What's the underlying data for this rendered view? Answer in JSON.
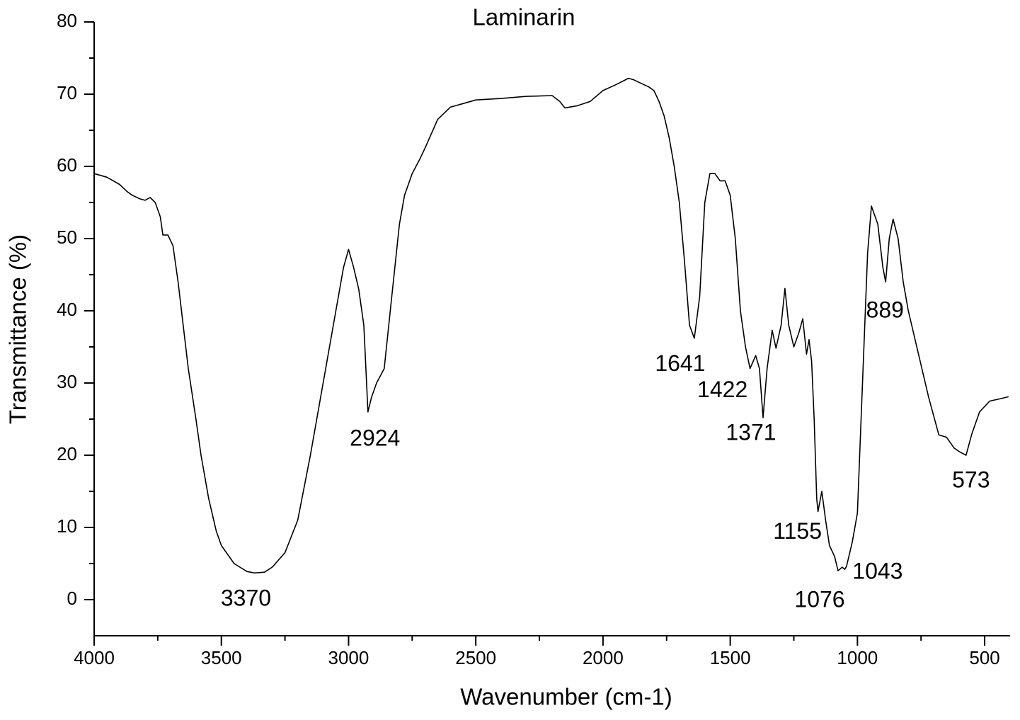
{
  "chart_data": {
    "type": "line",
    "title": "Laminarin",
    "x_label": "Wavenumber (cm-1)",
    "y_label": "Transmittance (%)",
    "xlim": [
      4000,
      400
    ],
    "ylim": [
      -5,
      80
    ],
    "xticks": [
      4000,
      3500,
      3000,
      2500,
      2000,
      1500,
      1000,
      500
    ],
    "xminorticks": [
      3750,
      3250,
      2750,
      2250,
      1750,
      1250,
      750
    ],
    "yticks": [
      0,
      10,
      20,
      30,
      40,
      50,
      60,
      70,
      80
    ],
    "yminorticks": [
      5,
      15,
      25,
      35,
      45,
      55,
      65,
      75
    ],
    "color": "#000000",
    "x": [
      4000,
      3950,
      3900,
      3870,
      3850,
      3820,
      3800,
      3780,
      3760,
      3740,
      3730,
      3710,
      3690,
      3670,
      3650,
      3630,
      3600,
      3580,
      3550,
      3520,
      3500,
      3450,
      3400,
      3370,
      3330,
      3300,
      3250,
      3200,
      3150,
      3100,
      3050,
      3020,
      3000,
      2980,
      2960,
      2940,
      2924,
      2910,
      2890,
      2860,
      2830,
      2800,
      2780,
      2750,
      2720,
      2700,
      2650,
      2600,
      2550,
      2500,
      2400,
      2300,
      2200,
      2170,
      2150,
      2100,
      2050,
      2000,
      1950,
      1900,
      1880,
      1850,
      1820,
      1800,
      1780,
      1760,
      1740,
      1720,
      1700,
      1680,
      1660,
      1641,
      1620,
      1600,
      1580,
      1560,
      1540,
      1520,
      1500,
      1480,
      1460,
      1440,
      1422,
      1400,
      1385,
      1371,
      1355,
      1335,
      1320,
      1300,
      1285,
      1270,
      1250,
      1230,
      1215,
      1200,
      1190,
      1180,
      1170,
      1160,
      1155,
      1140,
      1125,
      1110,
      1090,
      1076,
      1060,
      1050,
      1043,
      1020,
      1000,
      980,
      960,
      945,
      920,
      900,
      889,
      875,
      860,
      840,
      820,
      800,
      760,
      720,
      680,
      650,
      620,
      600,
      573,
      550,
      520,
      480,
      440,
      406
    ],
    "values": [
      59,
      58.5,
      57.5,
      56.5,
      56,
      55.5,
      55.3,
      55.7,
      55,
      53,
      50.5,
      50.5,
      49,
      44,
      38,
      32,
      25,
      20,
      14,
      9.5,
      7.5,
      5,
      3.9,
      3.7,
      3.8,
      4.5,
      6.5,
      11,
      20,
      30,
      40,
      46,
      48.5,
      46,
      43,
      38,
      26,
      28,
      30,
      32,
      42,
      52,
      56,
      59,
      61,
      62.5,
      66.5,
      68.2,
      68.7,
      69.2,
      69.4,
      69.7,
      69.8,
      69,
      68.1,
      68.4,
      69,
      70.5,
      71.3,
      72.2,
      72,
      71.5,
      71,
      70.5,
      69,
      67,
      64,
      60,
      55,
      47,
      38,
      36.2,
      42,
      55,
      59,
      59,
      58,
      58,
      56,
      50,
      40,
      35,
      32,
      33.8,
      32,
      25.2,
      32,
      37.3,
      34.8,
      38,
      43.1,
      38,
      35,
      37,
      38.9,
      34,
      36,
      33,
      25,
      14,
      12.2,
      15,
      11,
      7.5,
      6,
      4,
      4.5,
      4.2,
      4.6,
      8,
      12,
      30,
      48,
      54.5,
      52,
      46,
      44,
      50,
      52.7,
      50,
      44,
      40,
      34,
      28,
      22.8,
      22.5,
      21,
      20.5,
      20,
      23,
      26,
      27.5,
      27.8,
      28.1
    ],
    "annotations": [
      {
        "text": "3370",
        "x": 3370,
        "y": 3.7
      },
      {
        "text": "2924",
        "x": 2924,
        "y": 26
      },
      {
        "text": "1641",
        "x": 1641,
        "y": 36.2
      },
      {
        "text": "1422",
        "x": 1422,
        "y": 32
      },
      {
        "text": "1371",
        "x": 1371,
        "y": 25.2
      },
      {
        "text": "1155",
        "x": 1155,
        "y": 12.2
      },
      {
        "text": "1076",
        "x": 1076,
        "y": 4
      },
      {
        "text": "1043",
        "x": 1043,
        "y": 4.6
      },
      {
        "text": "889",
        "x": 889,
        "y": 44
      },
      {
        "text": "573",
        "x": 573,
        "y": 20
      }
    ]
  }
}
